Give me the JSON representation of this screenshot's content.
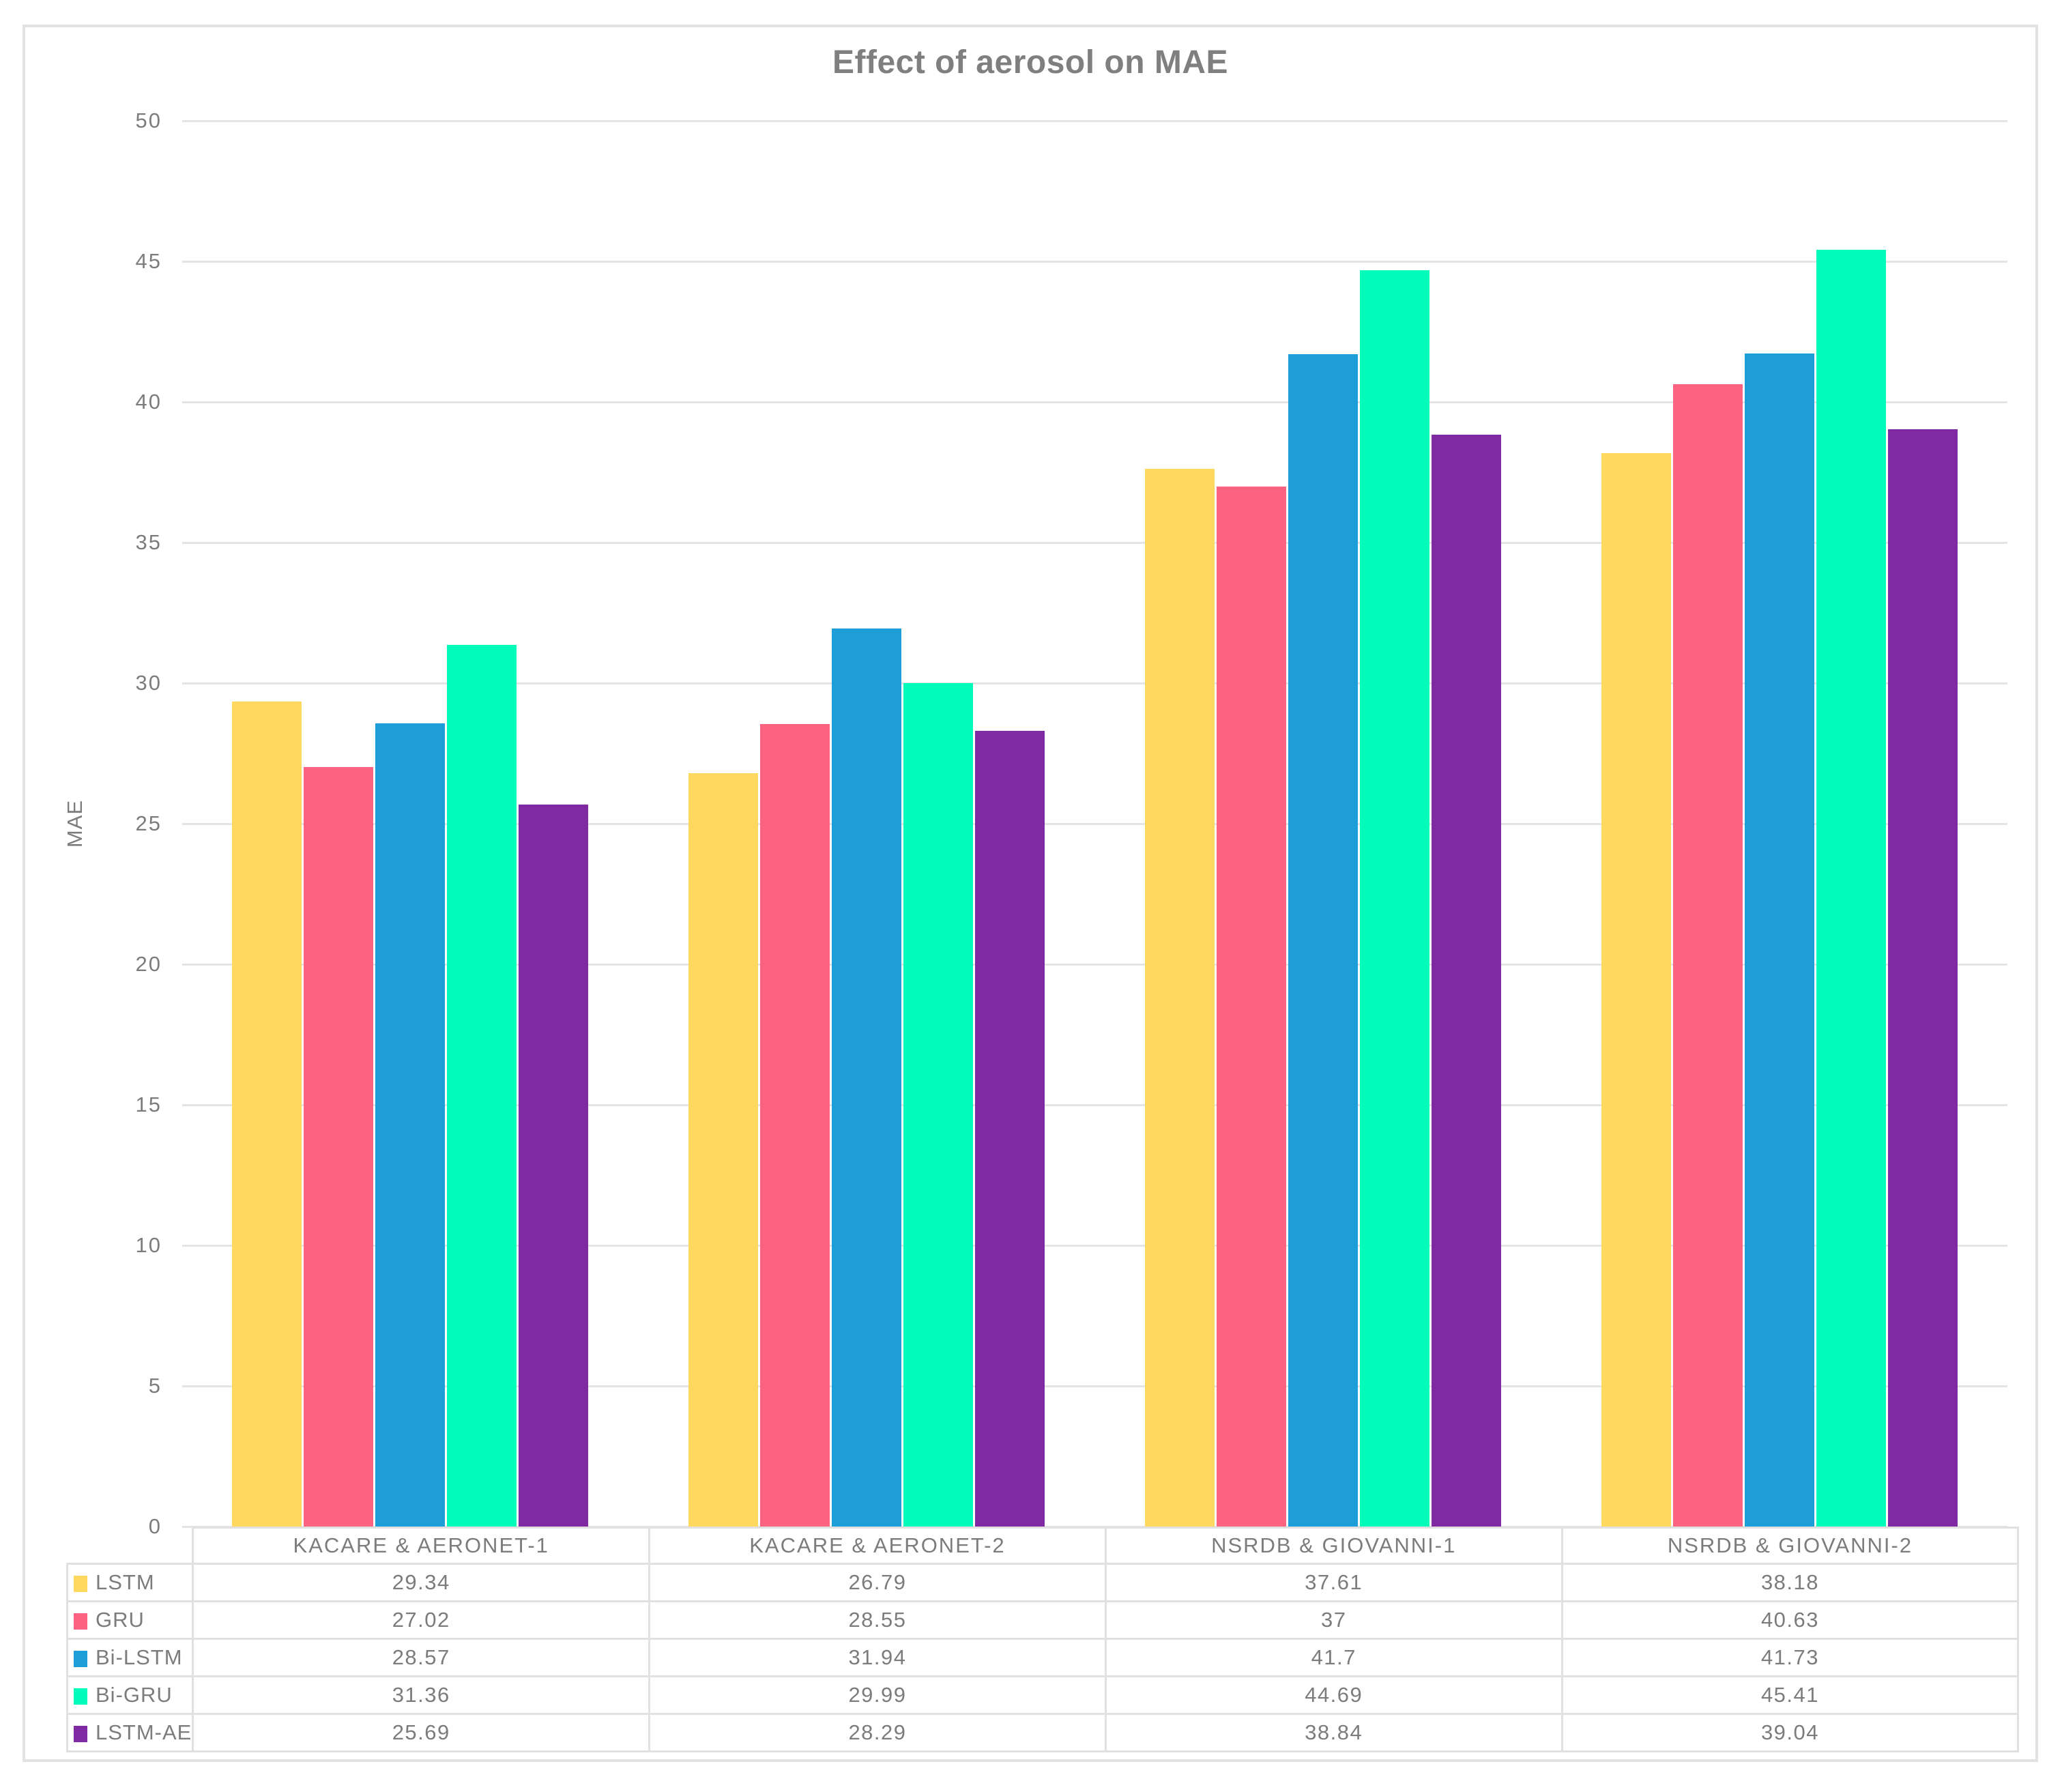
{
  "figure": {
    "background": "#FFFFFF",
    "border_color": "#E2E2E2",
    "gridline_color": "#E4E4E4",
    "table_border_color": "#E1E1E1",
    "text_color": "#7C7C7C",
    "title_color": "#7F7F7F"
  },
  "chart_data": {
    "type": "bar",
    "title": "Effect of aerosol on MAE",
    "xlabel": "",
    "ylabel": "MAE",
    "ylim": [
      0,
      50
    ],
    "ytick_step": 5,
    "yticks": [
      0,
      5,
      10,
      15,
      20,
      25,
      30,
      35,
      40,
      45,
      50
    ],
    "grid": true,
    "legend_position": "data-table-left",
    "categories": [
      "KACARE & AERONET-1",
      "KACARE & AERONET-2",
      "NSRDB & GIOVANNI-1",
      "NSRDB & GIOVANNI-2"
    ],
    "series": [
      {
        "name": "LSTM",
        "color": "#FFD95F",
        "values": [
          29.34,
          26.79,
          37.61,
          38.18
        ]
      },
      {
        "name": "GRU",
        "color": "#FB6380",
        "values": [
          27.02,
          28.55,
          37,
          40.63
        ]
      },
      {
        "name": "Bi-LSTM",
        "color": "#1E9ED9",
        "values": [
          28.57,
          31.94,
          41.7,
          41.73
        ]
      },
      {
        "name": "Bi-GRU",
        "color": "#00FCBA",
        "values": [
          31.36,
          29.99,
          44.69,
          45.41
        ]
      },
      {
        "name": "LSTM-AE",
        "color": "#7F29A2",
        "values": [
          25.69,
          28.29,
          38.84,
          39.04
        ]
      }
    ]
  }
}
